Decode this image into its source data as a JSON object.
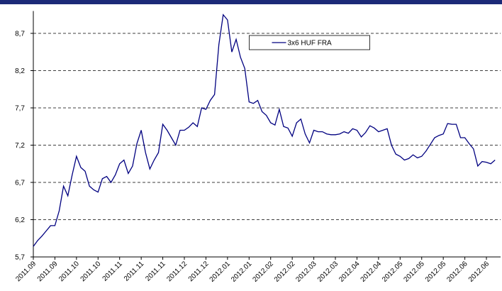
{
  "chart_data": {
    "type": "line",
    "categories": [
      "2011.09",
      null,
      null,
      null,
      null,
      "2011.09",
      null,
      null,
      null,
      null,
      "2011.10",
      null,
      null,
      null,
      null,
      "2011.10",
      null,
      null,
      null,
      null,
      "2011.11",
      null,
      null,
      null,
      null,
      "2011.11",
      null,
      null,
      null,
      null,
      "2011.11",
      null,
      null,
      null,
      null,
      "2011.12",
      null,
      null,
      null,
      null,
      "2011.12",
      null,
      null,
      null,
      null,
      "2012.01",
      null,
      null,
      null,
      null,
      "2012.01",
      null,
      null,
      null,
      null,
      "2012.02",
      null,
      null,
      null,
      null,
      "2012.02",
      null,
      null,
      null,
      null,
      "2012.03",
      null,
      null,
      null,
      null,
      "2012.03",
      null,
      null,
      null,
      null,
      "2012.04",
      null,
      null,
      null,
      null,
      "2012.04",
      null,
      null,
      null,
      null,
      "2012.05",
      null,
      null,
      null,
      null,
      "2012.05",
      null,
      null,
      null,
      null,
      "2012.05",
      null,
      null,
      null,
      null,
      "2012.06",
      null,
      null,
      null,
      null,
      "2012.06",
      null,
      null
    ],
    "series": [
      {
        "name": "3x6 HUF FRA",
        "color": "#000080",
        "values": [
          5.84,
          5.92,
          5.98,
          6.05,
          6.12,
          6.12,
          6.32,
          6.65,
          6.52,
          6.8,
          7.05,
          6.9,
          6.85,
          6.65,
          6.6,
          6.57,
          6.75,
          6.78,
          6.7,
          6.8,
          6.95,
          7.0,
          6.82,
          6.92,
          7.22,
          7.4,
          7.1,
          6.88,
          7.0,
          7.1,
          7.48,
          7.4,
          7.3,
          7.2,
          7.4,
          7.4,
          7.44,
          7.5,
          7.45,
          7.7,
          7.68,
          7.8,
          7.88,
          8.55,
          8.95,
          8.88,
          8.45,
          8.62,
          8.38,
          8.23,
          7.78,
          7.76,
          7.8,
          7.65,
          7.6,
          7.5,
          7.47,
          7.68,
          7.45,
          7.43,
          7.32,
          7.5,
          7.55,
          7.35,
          7.23,
          7.4,
          7.38,
          7.38,
          7.35,
          7.34,
          7.34,
          7.35,
          7.38,
          7.36,
          7.42,
          7.4,
          7.31,
          7.37,
          7.46,
          7.43,
          7.38,
          7.4,
          7.42,
          7.2,
          7.08,
          7.05,
          7.0,
          7.02,
          7.07,
          7.03,
          7.05,
          7.12,
          7.21,
          7.3,
          7.33,
          7.35,
          7.49,
          7.48,
          7.48,
          7.3,
          7.3,
          7.22,
          7.15,
          6.92,
          6.98,
          6.97,
          6.95,
          7.0
        ]
      }
    ],
    "ylim": [
      5.7,
      9.0
    ],
    "yticks": [
      {
        "value": 5.7,
        "label": "5,7"
      },
      {
        "value": 6.2,
        "label": "6,2"
      },
      {
        "value": 6.7,
        "label": "6,7"
      },
      {
        "value": 7.2,
        "label": "7,2"
      },
      {
        "value": 7.7,
        "label": "7,7"
      },
      {
        "value": 8.2,
        "label": "8,2"
      },
      {
        "value": 8.7,
        "label": "8,7"
      }
    ],
    "grid": true,
    "legend": "top-center"
  }
}
